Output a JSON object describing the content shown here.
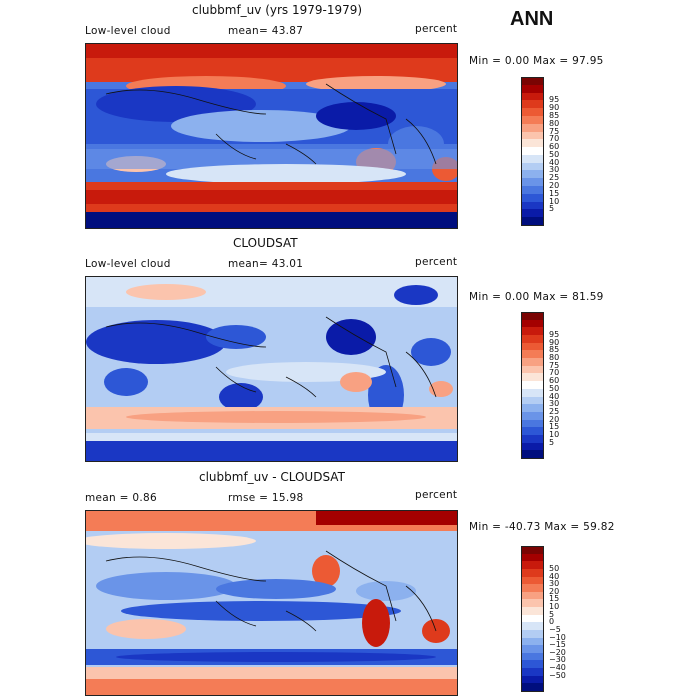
{
  "season": "ANN",
  "panels": [
    {
      "id": "model",
      "title": "clubbmf_uv (yrs 1979-1979)",
      "left_label": "Low-level cloud",
      "center_label": "mean=  43.87",
      "units": "percent",
      "minmax": "Min =    0.00 Max =   97.95",
      "colorbar": {
        "colors": [
          "#7a0403",
          "#a40000",
          "#c81a0c",
          "#de3a1c",
          "#ec5a34",
          "#f47c56",
          "#f8a182",
          "#fbc4ad",
          "#fbe5d8",
          "#ffffff",
          "#d7e5f7",
          "#b3cdf3",
          "#8cb1ee",
          "#6a94e8",
          "#4a77e0",
          "#2d57d6",
          "#1a37c4",
          "#0a1ba8",
          "#000e7e"
        ],
        "labels": [
          "95",
          "90",
          "85",
          "80",
          "75",
          "70",
          "60",
          "50",
          "40",
          "30",
          "25",
          "20",
          "15",
          "10",
          "5"
        ]
      }
    },
    {
      "id": "obs",
      "title": "CLOUDSAT",
      "left_label": "Low-level cloud",
      "center_label": "mean=  43.01",
      "units": "percent",
      "minmax": "Min =    0.00 Max =   81.59",
      "colorbar": {
        "colors": [
          "#7a0403",
          "#a40000",
          "#c81a0c",
          "#de3a1c",
          "#ec5a34",
          "#f47c56",
          "#f8a182",
          "#fbc4ad",
          "#fbe5d8",
          "#ffffff",
          "#d7e5f7",
          "#b3cdf3",
          "#8cb1ee",
          "#6a94e8",
          "#4a77e0",
          "#2d57d6",
          "#1a37c4",
          "#0a1ba8",
          "#000e7e"
        ],
        "labels": [
          "95",
          "90",
          "85",
          "80",
          "75",
          "70",
          "60",
          "50",
          "40",
          "30",
          "25",
          "20",
          "15",
          "10",
          "5"
        ]
      }
    },
    {
      "id": "diff",
      "title": "clubbmf_uv - CLOUDSAT",
      "left_label": "mean =    0.86",
      "center_label": "rmse =  15.98",
      "units": "percent",
      "minmax": "Min = -40.73 Max =   59.82",
      "colorbar": {
        "colors": [
          "#7a0403",
          "#a40000",
          "#c81a0c",
          "#de3a1c",
          "#ec5a34",
          "#f47c56",
          "#f8a182",
          "#fbc4ad",
          "#fbe5d8",
          "#ffffff",
          "#d7e5f7",
          "#b3cdf3",
          "#8cb1ee",
          "#6a94e8",
          "#4a77e0",
          "#2d57d6",
          "#1a37c4",
          "#0a1ba8",
          "#000e7e"
        ],
        "labels": [
          "50",
          "40",
          "30",
          "20",
          "15",
          "10",
          "5",
          "0",
          "−5",
          "−10",
          "−15",
          "−20",
          "−30",
          "−40",
          "−50"
        ]
      }
    }
  ]
}
